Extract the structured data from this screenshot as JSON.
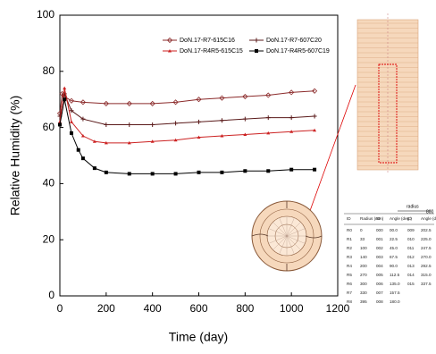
{
  "chart_data": {
    "type": "line",
    "x_label": "Time (day)",
    "y_label": "Relative Humidity (%)",
    "xlim": [
      0,
      1200
    ],
    "xticks": [
      0,
      200,
      400,
      600,
      800,
      1000,
      1200
    ],
    "ylim": [
      0,
      100
    ],
    "yticks": [
      0,
      20,
      40,
      60,
      80,
      100
    ],
    "series": [
      {
        "name": "DoN.17-R7-615C16",
        "color": "#8b2a2a",
        "marker": "diamond",
        "x": [
          0,
          10,
          20,
          50,
          100,
          200,
          300,
          400,
          500,
          600,
          700,
          800,
          900,
          1000,
          1100
        ],
        "values": [
          65,
          72,
          71,
          69.5,
          69,
          68.5,
          68.5,
          68.5,
          69,
          70,
          70.5,
          71,
          71.5,
          72.5,
          73
        ]
      },
      {
        "name": "DoN.17-R7-607C20",
        "color": "#5a1a1a",
        "marker": "plus",
        "x": [
          0,
          20,
          50,
          100,
          200,
          300,
          400,
          500,
          600,
          700,
          800,
          900,
          1000,
          1100
        ],
        "values": [
          64,
          72,
          66,
          63,
          61,
          61,
          61,
          61.5,
          62,
          62.5,
          63,
          63.5,
          63.5,
          64
        ]
      },
      {
        "name": "DoN.17-R4R5-615C15",
        "color": "#cc2222",
        "marker": "triangle",
        "x": [
          0,
          20,
          50,
          100,
          150,
          200,
          300,
          400,
          500,
          600,
          700,
          800,
          900,
          1000,
          1100
        ],
        "values": [
          62,
          74,
          62,
          57,
          55,
          54.5,
          54.5,
          55,
          55.5,
          56.5,
          57,
          57.5,
          58,
          58.5,
          59
        ]
      },
      {
        "name": "DoN.17-R4R5-607C19",
        "color": "#000000",
        "marker": "square",
        "x": [
          0,
          20,
          50,
          80,
          100,
          150,
          200,
          300,
          400,
          500,
          600,
          700,
          800,
          900,
          1000,
          1100
        ],
        "values": [
          61,
          70,
          58,
          52,
          49,
          45.5,
          44,
          43.5,
          43.5,
          43.5,
          44,
          44,
          44.5,
          44.5,
          45,
          45
        ]
      }
    ]
  },
  "inset": {
    "radius_label": "radius",
    "radius_value": "800",
    "table": {
      "header": [
        "ID",
        "Radius (mm)",
        "ID",
        "Angle (deg.)",
        "ID",
        "Angle (deg.)"
      ],
      "rows": [
        [
          "R0",
          "0",
          "000",
          "00.0",
          "009",
          "202.5"
        ],
        [
          "R1",
          "33",
          "001",
          "22.5",
          "010",
          "225.0"
        ],
        [
          "R2",
          "100",
          "002",
          "45.0",
          "011",
          "247.5"
        ],
        [
          "R3",
          "140",
          "003",
          "67.5",
          "012",
          "270.0"
        ],
        [
          "R4",
          "200",
          "004",
          "90.0",
          "013",
          "292.5"
        ],
        [
          "R5",
          "270",
          "005",
          "112.5",
          "014",
          "315.0"
        ],
        [
          "R6",
          "300",
          "006",
          "135.0",
          "015",
          "337.5"
        ],
        [
          "R7",
          "330",
          "007",
          "157.5"
        ],
        [
          "R8",
          "395",
          "008",
          "180.0"
        ]
      ]
    }
  }
}
